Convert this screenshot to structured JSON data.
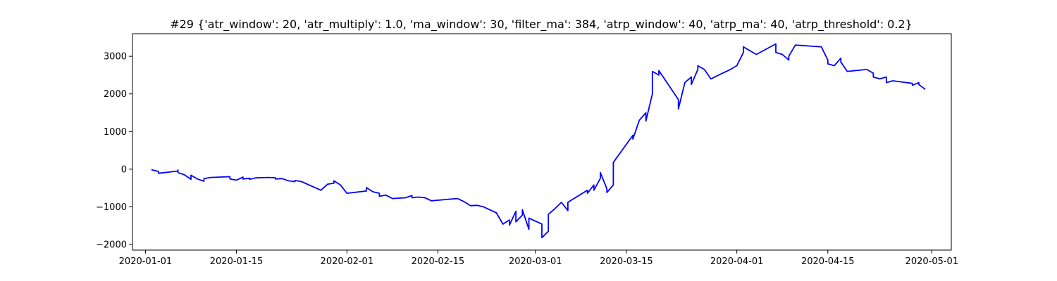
{
  "chart_data": {
    "type": "line",
    "title": "#29 {'atr_window': 20, 'atr_multiply': 1.0, 'ma_window': 30, 'filter_ma': 384, 'atrp_window': 40, 'atrp_ma': 40, 'atrp_threshold': 0.2}",
    "xlabel": "",
    "ylabel": "",
    "xlim": [
      "2019-12-30",
      "2020-05-04"
    ],
    "ylim": [
      -2150,
      3600
    ],
    "x_ticks": [
      "2020-01-01",
      "2020-01-15",
      "2020-02-01",
      "2020-02-15",
      "2020-03-01",
      "2020-03-15",
      "2020-04-01",
      "2020-04-15",
      "2020-05-01"
    ],
    "y_ticks": [
      -2000,
      -1000,
      0,
      1000,
      2000,
      3000
    ],
    "grid": false,
    "legend": "none",
    "series": [
      {
        "color": "#0000ff",
        "points": [
          [
            "2020-01-02",
            0
          ],
          [
            "2020-01-02",
            -20
          ],
          [
            "2020-01-03",
            -60
          ],
          [
            "2020-01-03",
            -110
          ],
          [
            "2020-01-06",
            -50
          ],
          [
            "2020-01-06",
            -20
          ],
          [
            "2020-01-06",
            -90
          ],
          [
            "2020-01-07",
            -150
          ],
          [
            "2020-01-08",
            -270
          ],
          [
            "2020-01-08",
            -160
          ],
          [
            "2020-01-09",
            -260
          ],
          [
            "2020-01-10",
            -320
          ],
          [
            "2020-01-10",
            -250
          ],
          [
            "2020-01-11",
            -220
          ],
          [
            "2020-01-14",
            -200
          ],
          [
            "2020-01-14",
            -260
          ],
          [
            "2020-01-15",
            -290
          ],
          [
            "2020-01-16",
            -210
          ],
          [
            "2020-01-16",
            -260
          ],
          [
            "2020-01-17",
            -240
          ],
          [
            "2020-01-17",
            -270
          ],
          [
            "2020-01-18",
            -230
          ],
          [
            "2020-01-20",
            -220
          ],
          [
            "2020-01-21",
            -230
          ],
          [
            "2020-01-21",
            -260
          ],
          [
            "2020-01-22",
            -250
          ],
          [
            "2020-01-23",
            -310
          ],
          [
            "2020-01-24",
            -330
          ],
          [
            "2020-01-24",
            -300
          ],
          [
            "2020-01-25",
            -330
          ],
          [
            "2020-01-28",
            -560
          ],
          [
            "2020-01-29",
            -400
          ],
          [
            "2020-01-30",
            -370
          ],
          [
            "2020-01-30",
            -310
          ],
          [
            "2020-01-31",
            -420
          ],
          [
            "2020-02-01",
            -640
          ],
          [
            "2020-02-04",
            -580
          ],
          [
            "2020-02-04",
            -490
          ],
          [
            "2020-02-05",
            -600
          ],
          [
            "2020-02-06",
            -640
          ],
          [
            "2020-02-06",
            -720
          ],
          [
            "2020-02-07",
            -690
          ],
          [
            "2020-02-08",
            -780
          ],
          [
            "2020-02-10",
            -760
          ],
          [
            "2020-02-11",
            -700
          ],
          [
            "2020-02-11",
            -760
          ],
          [
            "2020-02-12",
            -740
          ],
          [
            "2020-02-13",
            -760
          ],
          [
            "2020-02-14",
            -840
          ],
          [
            "2020-02-18",
            -780
          ],
          [
            "2020-02-19",
            -860
          ],
          [
            "2020-02-20",
            -970
          ],
          [
            "2020-02-21",
            -960
          ],
          [
            "2020-02-22",
            -1000
          ],
          [
            "2020-02-24",
            -1160
          ],
          [
            "2020-02-25",
            -1460
          ],
          [
            "2020-02-26",
            -1350
          ],
          [
            "2020-02-26",
            -1490
          ],
          [
            "2020-02-27",
            -1120
          ],
          [
            "2020-02-27",
            -1400
          ],
          [
            "2020-02-28",
            -1220
          ],
          [
            "2020-02-28",
            -1080
          ],
          [
            "2020-02-29",
            -1600
          ],
          [
            "2020-02-29",
            -1300
          ],
          [
            "2020-03-02",
            -1460
          ],
          [
            "2020-03-02",
            -1820
          ],
          [
            "2020-03-03",
            -1650
          ],
          [
            "2020-03-03",
            -1200
          ],
          [
            "2020-03-04",
            -1050
          ],
          [
            "2020-03-05",
            -880
          ],
          [
            "2020-03-06",
            -1100
          ],
          [
            "2020-03-06",
            -880
          ],
          [
            "2020-03-09",
            -560
          ],
          [
            "2020-03-09",
            -640
          ],
          [
            "2020-03-10",
            -420
          ],
          [
            "2020-03-10",
            -560
          ],
          [
            "2020-03-11",
            -240
          ],
          [
            "2020-03-11",
            -90
          ],
          [
            "2020-03-12",
            -520
          ],
          [
            "2020-03-12",
            -620
          ],
          [
            "2020-03-13",
            -420
          ],
          [
            "2020-03-13",
            180
          ],
          [
            "2020-03-16",
            900
          ],
          [
            "2020-03-16",
            800
          ],
          [
            "2020-03-17",
            1300
          ],
          [
            "2020-03-18",
            1500
          ],
          [
            "2020-03-18",
            1280
          ],
          [
            "2020-03-19",
            2000
          ],
          [
            "2020-03-19",
            2600
          ],
          [
            "2020-03-20",
            2500
          ],
          [
            "2020-03-20",
            2620
          ],
          [
            "2020-03-23",
            1850
          ],
          [
            "2020-03-23",
            1600
          ],
          [
            "2020-03-24",
            2300
          ],
          [
            "2020-03-25",
            2450
          ],
          [
            "2020-03-25",
            2250
          ],
          [
            "2020-03-26",
            2650
          ],
          [
            "2020-03-26",
            2750
          ],
          [
            "2020-03-27",
            2650
          ],
          [
            "2020-03-28",
            2400
          ],
          [
            "2020-03-31",
            2650
          ],
          [
            "2020-04-01",
            2750
          ],
          [
            "2020-04-02",
            3100
          ],
          [
            "2020-04-02",
            3250
          ],
          [
            "2020-04-03",
            3150
          ],
          [
            "2020-04-04",
            3050
          ],
          [
            "2020-04-07",
            3330
          ],
          [
            "2020-04-07",
            3100
          ],
          [
            "2020-04-08",
            3050
          ],
          [
            "2020-04-09",
            2900
          ],
          [
            "2020-04-09",
            3000
          ],
          [
            "2020-04-10",
            3300
          ],
          [
            "2020-04-14",
            3250
          ],
          [
            "2020-04-15",
            2900
          ],
          [
            "2020-04-15",
            2800
          ],
          [
            "2020-04-16",
            2750
          ],
          [
            "2020-04-17",
            2950
          ],
          [
            "2020-04-17",
            2850
          ],
          [
            "2020-04-18",
            2600
          ],
          [
            "2020-04-21",
            2650
          ],
          [
            "2020-04-22",
            2550
          ],
          [
            "2020-04-22",
            2450
          ],
          [
            "2020-04-23",
            2400
          ],
          [
            "2020-04-24",
            2450
          ],
          [
            "2020-04-24",
            2300
          ],
          [
            "2020-04-25",
            2350
          ],
          [
            "2020-04-28",
            2280
          ],
          [
            "2020-04-28",
            2230
          ],
          [
            "2020-04-29",
            2300
          ],
          [
            "2020-04-29",
            2250
          ],
          [
            "2020-04-30",
            2120
          ]
        ]
      }
    ]
  }
}
